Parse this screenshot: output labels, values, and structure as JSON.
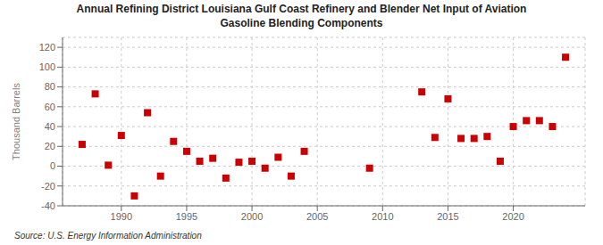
{
  "chart_data": {
    "type": "scatter",
    "title": "Annual Refining District Louisiana Gulf Coast Refinery and Blender Net Input of Aviation\nGasoline Blending Components",
    "ylabel": "Thousand Barrels",
    "source": "Source: U.S. Energy Information Administration",
    "x": [
      1987,
      1988,
      1989,
      1990,
      1991,
      1992,
      1993,
      1994,
      1995,
      1996,
      1997,
      1998,
      1999,
      2000,
      2001,
      2002,
      2003,
      2004,
      2009,
      2013,
      2014,
      2015,
      2016,
      2017,
      2018,
      2019,
      2020,
      2021,
      2022,
      2023,
      2024
    ],
    "values": [
      22,
      73,
      1,
      31,
      -30,
      54,
      -10,
      25,
      15,
      5,
      8,
      -12,
      4,
      5,
      -2,
      9,
      -10,
      15,
      -2,
      75,
      29,
      68,
      28,
      28,
      30,
      5,
      40,
      46,
      46,
      40,
      110
    ],
    "color": "#cc0000",
    "marker": "square",
    "xlim": [
      1985.5,
      2025.5
    ],
    "ylim": [
      -40,
      130
    ],
    "xticks": [
      1990,
      1995,
      2000,
      2005,
      2010,
      2015,
      2020
    ],
    "yticks": [
      -40,
      -20,
      0,
      20,
      40,
      60,
      80,
      100,
      120
    ],
    "grid": true
  }
}
